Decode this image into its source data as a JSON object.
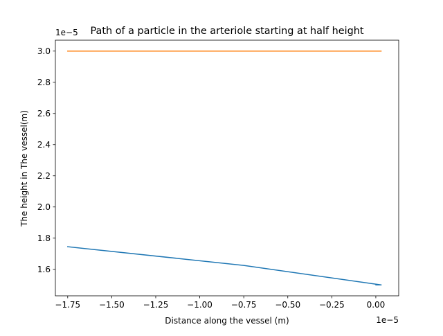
{
  "chart_data": {
    "type": "line",
    "title": "Path of a particle in the arteriole starting at half height",
    "xlabel": "Distance along the vessel (m)",
    "ylabel": "The height in The vessel(m)",
    "x_offset_label": "1e−5",
    "y_offset_label": "1e−5",
    "xlim": [
      -1.82,
      0.13
    ],
    "ylim": [
      1.43,
      3.07
    ],
    "x_scale_exponent": -5,
    "y_scale_exponent": -5,
    "x_ticks": [
      -1.75,
      -1.5,
      -1.25,
      -1.0,
      -0.75,
      -0.5,
      -0.25,
      0.0
    ],
    "x_tick_labels": [
      "−1.75",
      "−1.50",
      "−1.25",
      "−1.00",
      "−0.75",
      "−0.50",
      "−0.25",
      "0.00"
    ],
    "y_ticks": [
      1.6,
      1.8,
      2.0,
      2.2,
      2.4,
      2.6,
      2.8,
      3.0
    ],
    "y_tick_labels": [
      "1.6",
      "1.8",
      "2.0",
      "2.2",
      "2.4",
      "2.6",
      "2.8",
      "3.0"
    ],
    "grid": false,
    "series": [
      {
        "color": "#1f77b4",
        "x": [
          -1.75,
          -0.75,
          0.03,
          0.0,
          0.03
        ],
        "y": [
          1.745,
          1.625,
          1.5,
          1.5,
          1.5
        ]
      },
      {
        "color": "#ff7f0e",
        "x": [
          -1.75,
          0.03
        ],
        "y": [
          3.0,
          3.0
        ]
      }
    ]
  }
}
